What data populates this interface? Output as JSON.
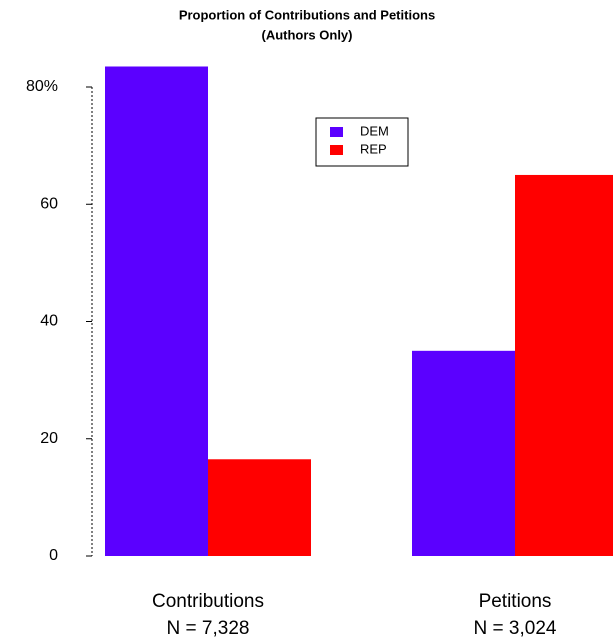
{
  "chart_data": {
    "type": "bar",
    "title": "Proportion of Contributions and Petitions",
    "subtitle": "(Authors Only)",
    "categories": [
      "Contributions",
      "Petitions"
    ],
    "category_sublabels": [
      "N = 7,328",
      "N = 3,024"
    ],
    "series": [
      {
        "name": "DEM",
        "color": "#5b00ff",
        "values": [
          83.5,
          35
        ]
      },
      {
        "name": "REP",
        "color": "#ff0000",
        "values": [
          16.5,
          65
        ]
      }
    ],
    "ylim": [
      0,
      85
    ],
    "yticks": [
      0,
      20,
      40,
      60,
      {
        "value": 80,
        "label": "80%"
      }
    ],
    "legend": "top-center"
  }
}
